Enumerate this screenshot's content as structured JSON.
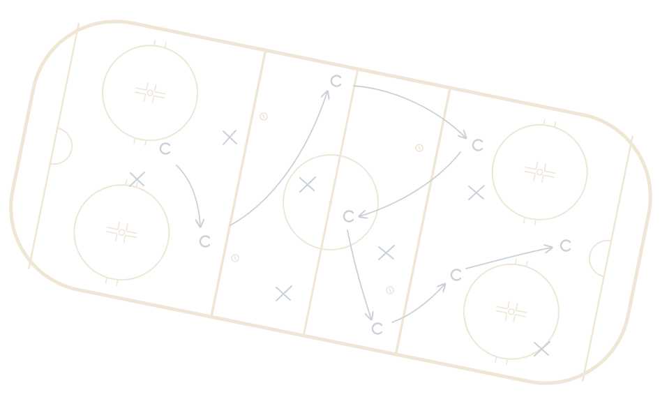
{
  "diagram": {
    "subject": "hockey-rink-play-diagram",
    "colors": {
      "rink": "#efe6d6",
      "play": "#c9d0d8",
      "background": "#ffffff"
    },
    "icons": {
      "player": "circle-c-glyph",
      "defender": "x-mark-glyph",
      "puck": "small-ring-glyph",
      "faceoff": "faceoff-circle-hashmarks"
    }
  }
}
